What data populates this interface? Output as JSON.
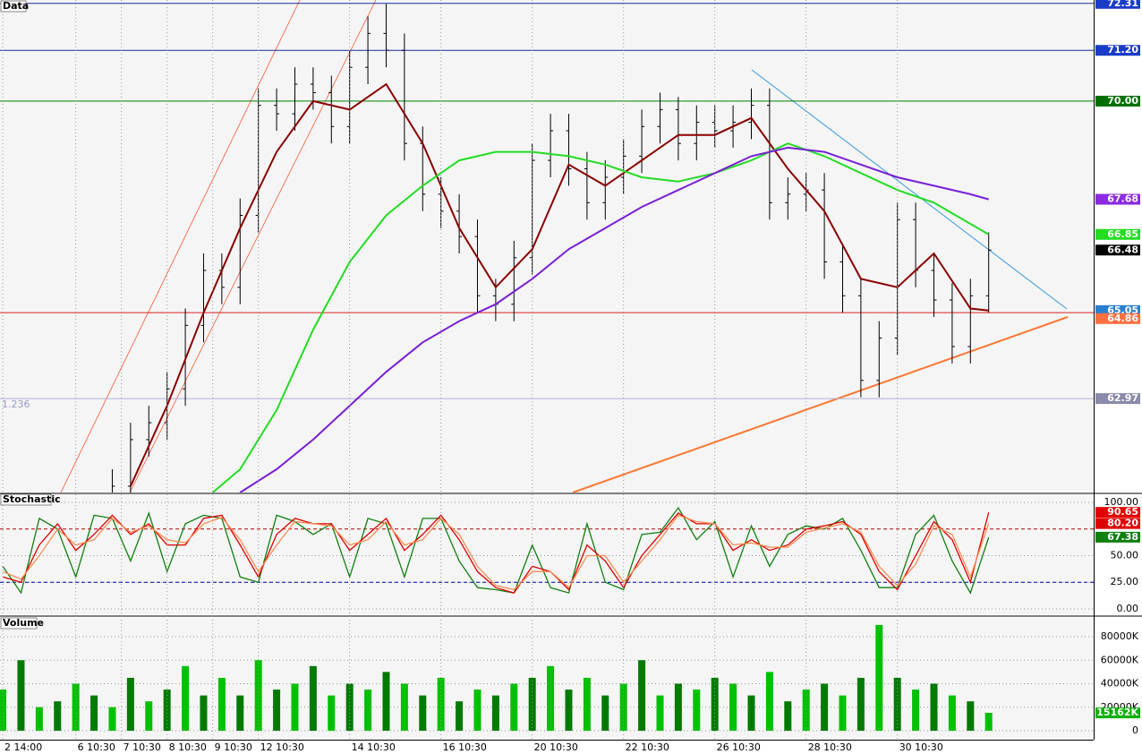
{
  "chart_data": [
    {
      "type": "candlestick",
      "title": "Data",
      "annotation": "1.236",
      "xlim": [
        -0.3,
        119.5
      ],
      "ylim": [
        60.75,
        72.39
      ],
      "x": [
        12,
        14,
        16,
        18,
        20,
        22,
        24,
        26,
        28,
        30,
        32,
        34,
        36,
        38,
        40,
        42,
        44,
        46,
        48,
        50,
        52,
        54,
        56,
        58,
        60,
        62,
        64,
        66,
        68,
        70,
        72,
        74,
        76,
        78,
        80,
        82,
        84,
        86,
        88,
        90,
        92,
        94,
        96,
        98,
        100,
        102,
        104,
        106,
        108
      ],
      "open": [
        60.6,
        60.9,
        62.0,
        62.4,
        63.2,
        64.7,
        66.0,
        65.6,
        67.3,
        69.9,
        69.7,
        70.4,
        70.2,
        69.4,
        70.8,
        71.6,
        71.2,
        69.0,
        67.8,
        67.4,
        66.8,
        65.4,
        65.2,
        66.3,
        68.6,
        69.3,
        68.4,
        67.6,
        68.2,
        68.7,
        69.4,
        69.8,
        69.0,
        69.5,
        69.3,
        69.5,
        69.9,
        67.6,
        67.8,
        67.9,
        66.2,
        65.4,
        63.4,
        64.4,
        67.2,
        66.0,
        65.3,
        64.2,
        65.4
      ],
      "high": [
        61.3,
        62.4,
        62.8,
        63.6,
        65.1,
        66.4,
        66.4,
        67.7,
        70.3,
        70.3,
        70.8,
        70.8,
        70.6,
        71.2,
        72.0,
        72.3,
        71.6,
        69.4,
        68.2,
        67.8,
        67.2,
        65.8,
        66.7,
        69.0,
        69.7,
        69.7,
        68.8,
        68.6,
        69.1,
        69.8,
        70.2,
        70.1,
        69.9,
        69.9,
        69.9,
        70.3,
        70.3,
        68.2,
        68.3,
        68.3,
        66.6,
        65.8,
        64.8,
        67.6,
        67.6,
        66.4,
        65.7,
        65.8,
        66.9
      ],
      "low": [
        60.2,
        60.5,
        61.6,
        62.0,
        62.8,
        64.3,
        65.2,
        65.2,
        66.9,
        69.3,
        69.3,
        69.8,
        69.0,
        69.0,
        70.4,
        70.8,
        68.6,
        67.4,
        67.0,
        66.4,
        65.0,
        64.8,
        64.8,
        65.9,
        68.2,
        68.0,
        67.2,
        67.2,
        67.8,
        68.3,
        69.0,
        68.6,
        68.6,
        68.9,
        68.9,
        69.1,
        67.2,
        67.2,
        67.4,
        65.8,
        65.0,
        63.0,
        63.0,
        64.0,
        65.6,
        64.9,
        63.8,
        63.8,
        65.0
      ],
      "close": [
        60.9,
        62.0,
        62.4,
        63.2,
        64.7,
        66.0,
        65.6,
        67.3,
        69.9,
        69.7,
        70.4,
        70.2,
        69.4,
        70.8,
        71.6,
        71.2,
        69.0,
        67.8,
        67.4,
        66.8,
        65.4,
        65.2,
        66.3,
        68.6,
        69.3,
        68.4,
        67.6,
        68.2,
        68.7,
        69.4,
        69.8,
        69.0,
        69.5,
        69.3,
        69.5,
        69.9,
        67.6,
        67.8,
        67.9,
        66.2,
        65.4,
        63.4,
        64.4,
        67.2,
        66.0,
        65.3,
        64.2,
        65.4,
        66.48
      ],
      "series": [
        {
          "color": "#8b0000",
          "x": [
            14,
            18,
            22,
            26,
            30,
            34,
            38,
            42,
            46,
            50,
            54,
            58,
            62,
            66,
            70,
            74,
            78,
            82,
            86,
            90,
            94,
            98,
            102,
            106,
            108
          ],
          "values": [
            60.9,
            62.8,
            65.0,
            67.0,
            68.8,
            70.0,
            69.8,
            70.4,
            69.0,
            67.0,
            65.6,
            66.5,
            68.5,
            68.0,
            68.6,
            69.2,
            69.2,
            69.6,
            68.4,
            67.4,
            65.8,
            65.6,
            66.4,
            65.1,
            65.05
          ]
        },
        {
          "color": "#22dd22",
          "x": [
            23,
            26,
            30,
            34,
            38,
            42,
            46,
            50,
            54,
            58,
            62,
            66,
            70,
            74,
            78,
            82,
            86,
            90,
            94,
            98,
            102,
            106,
            108
          ],
          "values": [
            60.75,
            61.3,
            62.7,
            64.6,
            66.2,
            67.3,
            68.0,
            68.6,
            68.8,
            68.8,
            68.7,
            68.5,
            68.2,
            68.1,
            68.3,
            68.6,
            69.0,
            68.7,
            68.3,
            67.9,
            67.6,
            67.1,
            66.85
          ]
        },
        {
          "color": "#7a1fd8",
          "x": [
            26,
            30,
            34,
            38,
            42,
            46,
            50,
            54,
            58,
            62,
            66,
            70,
            74,
            78,
            82,
            86,
            90,
            94,
            98,
            102,
            106,
            108
          ],
          "values": [
            60.75,
            61.3,
            62.0,
            62.8,
            63.6,
            64.3,
            64.8,
            65.2,
            65.8,
            66.5,
            67.0,
            67.5,
            67.9,
            68.3,
            68.7,
            68.9,
            68.8,
            68.5,
            68.2,
            68.0,
            67.8,
            67.68
          ]
        }
      ],
      "hlines": [
        {
          "value": 72.31,
          "color": "#1a2c9c"
        },
        {
          "value": 71.2,
          "color": "#1a2c9c"
        },
        {
          "value": 70,
          "color": "#008000"
        },
        {
          "value": 65,
          "color": "#dd2222"
        },
        {
          "value": 62.97,
          "color": "#b0b0d8"
        }
      ],
      "markers": [
        {
          "value": 72.31,
          "color": "#1a3cc8"
        },
        {
          "value": 71.2,
          "label": "71.20",
          "color": "#1a3cc8"
        },
        {
          "value": 70,
          "label": "70.00",
          "color": "#007000"
        },
        {
          "value": 67.68,
          "color": "#8a2be2"
        },
        {
          "value": 66.85,
          "color": "#22dd22"
        },
        {
          "value": 66.48,
          "color": "#000000"
        },
        {
          "value": 65.05,
          "color": "#2a80d0"
        },
        {
          "value": 64.86,
          "color": "#ff7040"
        },
        {
          "value": 62.97,
          "color": "#8a8aaa"
        }
      ]
    },
    {
      "type": "line",
      "title": "Stochastic",
      "xlim": [
        -0.3,
        119.5
      ],
      "ylim": [
        -5.1,
        108.5
      ],
      "x": [
        0,
        2,
        4,
        6,
        8,
        10,
        12,
        14,
        16,
        18,
        20,
        22,
        24,
        26,
        28,
        30,
        32,
        34,
        36,
        38,
        40,
        42,
        44,
        46,
        48,
        50,
        52,
        54,
        56,
        58,
        60,
        62,
        64,
        66,
        68,
        70,
        72,
        74,
        76,
        78,
        80,
        82,
        84,
        86,
        88,
        90,
        92,
        94,
        96,
        98,
        100,
        102,
        104,
        106,
        108
      ],
      "yticks": [
        {
          "value": 0,
          "label": "0.00"
        },
        {
          "value": 25,
          "label": "25.00"
        },
        {
          "value": 50,
          "label": "50.00"
        },
        {
          "value": 100,
          "label": "100.00"
        }
      ],
      "hlines": [
        {
          "value": 75,
          "color": "#b00000"
        },
        {
          "value": 25,
          "color": "#0000b0"
        }
      ],
      "series": [
        {
          "color": "#108010",
          "values": [
            40,
            15,
            85,
            75,
            30,
            88,
            85,
            45,
            90,
            35,
            80,
            88,
            85,
            30,
            25,
            88,
            82,
            70,
            80,
            30,
            85,
            80,
            30,
            85,
            85,
            45,
            20,
            18,
            15,
            60,
            20,
            15,
            80,
            25,
            18,
            70,
            72,
            95,
            65,
            82,
            30,
            78,
            40,
            70,
            78,
            75,
            85,
            55,
            20,
            20,
            70,
            88,
            45,
            15,
            67.38
          ]
        },
        {
          "color": "#e00000",
          "values": [
            30,
            25,
            60,
            80,
            55,
            70,
            88,
            70,
            80,
            60,
            60,
            85,
            88,
            60,
            30,
            70,
            85,
            80,
            80,
            55,
            70,
            85,
            55,
            70,
            88,
            65,
            35,
            20,
            15,
            40,
            35,
            18,
            60,
            45,
            20,
            50,
            70,
            90,
            80,
            80,
            55,
            65,
            55,
            60,
            75,
            78,
            82,
            70,
            35,
            18,
            50,
            82,
            65,
            25,
            90.65
          ]
        },
        {
          "color": "#ff8c50",
          "values": [
            35,
            28,
            50,
            75,
            60,
            65,
            85,
            72,
            78,
            65,
            62,
            80,
            86,
            65,
            35,
            60,
            82,
            80,
            78,
            60,
            65,
            82,
            60,
            65,
            85,
            70,
            40,
            22,
            18,
            35,
            35,
            20,
            50,
            50,
            25,
            45,
            65,
            88,
            82,
            80,
            60,
            62,
            58,
            58,
            72,
            76,
            80,
            72,
            40,
            22,
            42,
            78,
            70,
            30,
            80.2
          ]
        }
      ],
      "markers": [
        {
          "value": 90.65,
          "color": "#e00000"
        },
        {
          "value": 80.2,
          "label": "80.20",
          "color": "#e00000"
        },
        {
          "value": 67.38,
          "color": "#108010"
        }
      ]
    },
    {
      "type": "bar",
      "title": "Volume",
      "xlim": [
        -0.3,
        119.5
      ],
      "ylim": [
        -7619,
        96762
      ],
      "colors": [
        "#00c000",
        "#007a00"
      ],
      "x": [
        0,
        2,
        4,
        6,
        8,
        10,
        12,
        14,
        16,
        18,
        20,
        22,
        24,
        26,
        28,
        30,
        32,
        34,
        36,
        38,
        40,
        42,
        44,
        46,
        48,
        50,
        52,
        54,
        56,
        58,
        60,
        62,
        64,
        66,
        68,
        70,
        72,
        74,
        76,
        78,
        80,
        82,
        84,
        86,
        88,
        90,
        92,
        94,
        96,
        98,
        100,
        102,
        104,
        106,
        108
      ],
      "values": [
        35000,
        60000,
        20000,
        25000,
        40000,
        30000,
        20000,
        45000,
        25000,
        35000,
        55000,
        30000,
        45000,
        30000,
        60000,
        35000,
        40000,
        55000,
        30000,
        40000,
        35000,
        50000,
        40000,
        30000,
        45000,
        25000,
        35000,
        30000,
        40000,
        45000,
        55000,
        35000,
        45000,
        30000,
        40000,
        60000,
        30000,
        40000,
        35000,
        45000,
        40000,
        30000,
        50000,
        25000,
        35000,
        40000,
        30000,
        45000,
        90000,
        45000,
        35000,
        40000,
        30000,
        25000,
        15162
      ],
      "yticks": [
        0,
        {
          "value": 20000,
          "label": "20000K"
        },
        {
          "value": 40000,
          "label": "40000K"
        },
        {
          "value": 60000,
          "label": "60000K"
        },
        {
          "value": 80000,
          "label": "80000K"
        }
      ],
      "markers": [
        {
          "value": 15162,
          "label": "15162K",
          "color": "#00b000"
        }
      ],
      "xticks": [
        {
          "value": 0,
          "label": "2 14:00"
        },
        {
          "value": 8,
          "label": "6 10:30"
        },
        {
          "value": 13,
          "label": "7 10:30"
        },
        {
          "value": 18,
          "label": "8 10:30"
        },
        {
          "value": 23,
          "label": "9 10:30"
        },
        {
          "value": 28,
          "label": "12 10:30"
        },
        {
          "value": 38,
          "label": "14 10:30"
        },
        {
          "value": 48,
          "label": "16 10:30"
        },
        {
          "value": 58,
          "label": "20 10:30"
        },
        {
          "value": 68,
          "label": "22 10:30"
        },
        {
          "value": 78,
          "label": "26 10:30"
        },
        {
          "value": 88,
          "label": "28 10:30"
        },
        {
          "value": 98,
          "label": "30 10:30"
        }
      ]
    }
  ]
}
